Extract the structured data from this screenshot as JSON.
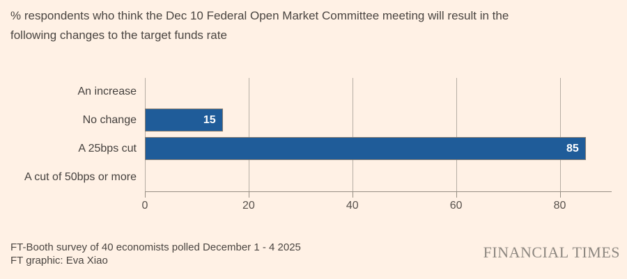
{
  "title": {
    "lines": [
      "% respondents who think the Dec 10 Federal Open Market Committee meeting will result in the",
      "following changes to the target funds rate"
    ]
  },
  "chart_data": {
    "type": "bar",
    "orientation": "horizontal",
    "categories": [
      "An increase",
      "No change",
      "A 25bps cut",
      "A cut of 50bps or more"
    ],
    "values": [
      0,
      15,
      85,
      0
    ],
    "value_labels": [
      "",
      "15",
      "85",
      ""
    ],
    "xticks": [
      0,
      20,
      40,
      60,
      80
    ],
    "xlim": [
      0,
      90
    ],
    "grid": true,
    "legend": "none",
    "bar_color": "#1F5C99",
    "value_label_color": "#FFFFFF"
  },
  "footer": {
    "source": "FT-Booth survey of 40 economists polled December 1 - 4 2025",
    "credit": "FT graphic: Eva Xiao"
  },
  "branding": {
    "logo": "FINANCIAL TIMES"
  },
  "colors": {
    "background": "#FFF1E5",
    "bar": "#1F5C99",
    "gridline": "#b5ada3",
    "axis": "#968e83",
    "text": "#4a4541",
    "logo": "#8d8780"
  }
}
